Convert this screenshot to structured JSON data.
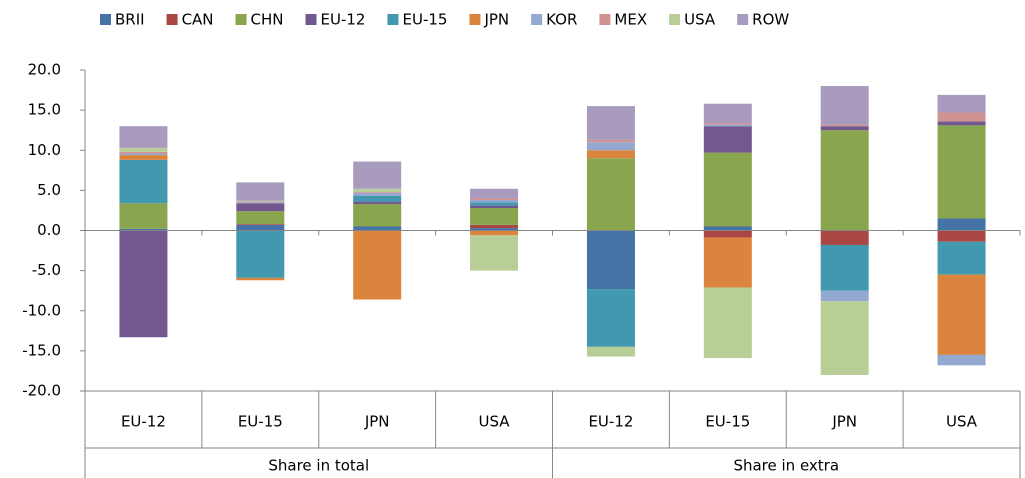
{
  "chart_data": {
    "type": "stacked_bar",
    "groups": [
      {
        "name": "Share in total",
        "categories": [
          "EU-12",
          "EU-15",
          "JPN",
          "USA"
        ]
      },
      {
        "name": "Share in extra",
        "categories": [
          "EU-12",
          "EU-15",
          "JPN",
          "USA"
        ]
      }
    ],
    "series": [
      {
        "name": "BRII",
        "color": "#4572a7",
        "values": [
          0.2,
          0.7,
          0.5,
          0.3,
          -7.3,
          0.5,
          0,
          1.5
        ]
      },
      {
        "name": "CAN",
        "color": "#aa4643",
        "values": [
          0,
          0.1,
          0,
          0.4,
          0,
          -0.9,
          -1.8,
          -1.4
        ]
      },
      {
        "name": "CHN",
        "color": "#89a54e",
        "values": [
          3.2,
          1.6,
          2.8,
          2.1,
          9.0,
          9.2,
          12.5,
          11.6
        ]
      },
      {
        "name": "EU-12",
        "color": "#71588f",
        "values": [
          -13.3,
          1.0,
          0.3,
          0.3,
          0,
          3.3,
          0.5,
          0.5
        ]
      },
      {
        "name": "EU-15",
        "color": "#4198af",
        "values": [
          5.4,
          -5.9,
          0.7,
          0.4,
          -7.2,
          0,
          -5.7,
          -4.1
        ]
      },
      {
        "name": "JPN",
        "color": "#db843d",
        "values": [
          0.6,
          -0.3,
          -8.6,
          -0.6,
          1.0,
          -6.2,
          0,
          -10.0
        ]
      },
      {
        "name": "KOR",
        "color": "#93a9cf",
        "values": [
          0.2,
          0.1,
          0.4,
          0.3,
          1.0,
          0.2,
          -1.3,
          -1.3
        ]
      },
      {
        "name": "MEX",
        "color": "#d19392",
        "values": [
          0.2,
          0.1,
          0.1,
          0.2,
          0.3,
          0.2,
          0.2,
          1.1
        ]
      },
      {
        "name": "USA",
        "color": "#b9cd96",
        "values": [
          0.5,
          0.1,
          0.4,
          -4.4,
          -1.2,
          -8.8,
          -9.2,
          0
        ]
      },
      {
        "name": "ROW",
        "color": "#a99bbd",
        "values": [
          2.7,
          2.3,
          3.4,
          1.2,
          4.2,
          2.4,
          4.8,
          2.2
        ]
      }
    ],
    "ylim": [
      -20,
      20
    ],
    "yticks": [
      {
        "value": -20,
        "label": "-20.0"
      },
      {
        "value": -15,
        "label": "-15.0"
      },
      {
        "value": -10,
        "label": "-10.0"
      },
      {
        "value": -5,
        "label": "-5.0"
      },
      {
        "value": 0,
        "label": "0.0"
      },
      {
        "value": 5,
        "label": "5.0"
      },
      {
        "value": 10,
        "label": "10.0"
      },
      {
        "value": 15,
        "label": "15.0"
      },
      {
        "value": 20,
        "label": "20.0"
      }
    ],
    "grid": false,
    "legend": "top"
  }
}
